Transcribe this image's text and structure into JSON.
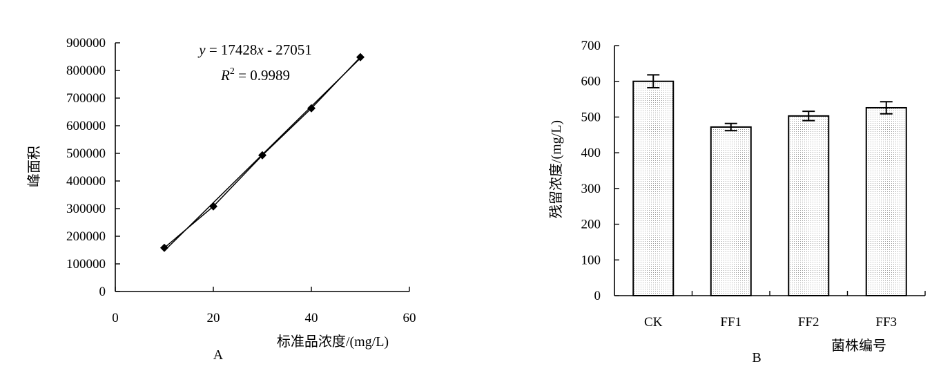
{
  "chart_data": [
    {
      "type": "scatter",
      "panel_label": "A",
      "xlabel": "标准品浓度/(mg/L)",
      "ylabel": "峰面积",
      "xlim": [
        0,
        60
      ],
      "ylim": [
        0,
        900000
      ],
      "x_ticks": [
        "0",
        "20",
        "40",
        "60"
      ],
      "y_ticks": [
        "0",
        "100000",
        "200000",
        "300000",
        "400000",
        "500000",
        "600000",
        "700000",
        "800000",
        "900000"
      ],
      "series": [
        {
          "marker": "diamond",
          "connected": true,
          "x": [
            10,
            20,
            30,
            40,
            50
          ],
          "y": [
            158000,
            308000,
            493000,
            663000,
            848000
          ]
        }
      ],
      "trendline": {
        "slope": 17428,
        "intercept": -27051,
        "equation_y": "y",
        "equation_rest": " = 17428",
        "equation_x": "x",
        "equation_tail": " - 27051",
        "r2_label": "R",
        "r2_sup": "2",
        "r2_value": " = 0.9989"
      },
      "grid": false,
      "legend": "none"
    },
    {
      "type": "bar",
      "panel_label": "B",
      "xlabel": "菌株编号",
      "ylabel": "残留浓度/(mg/L)",
      "categories": [
        "CK",
        "FF1",
        "FF2",
        "FF3"
      ],
      "values": [
        600,
        472,
        503,
        526
      ],
      "errors": [
        18,
        10,
        13,
        17
      ],
      "ylim": [
        0,
        700
      ],
      "y_ticks": [
        "0",
        "100",
        "200",
        "300",
        "400",
        "500",
        "600",
        "700"
      ],
      "bar_fill": "dotted-gray",
      "grid": false,
      "legend": "none"
    }
  ],
  "colors": {
    "ink": "#000000",
    "bar_dot": "#9a9a9a",
    "background": "#ffffff"
  }
}
